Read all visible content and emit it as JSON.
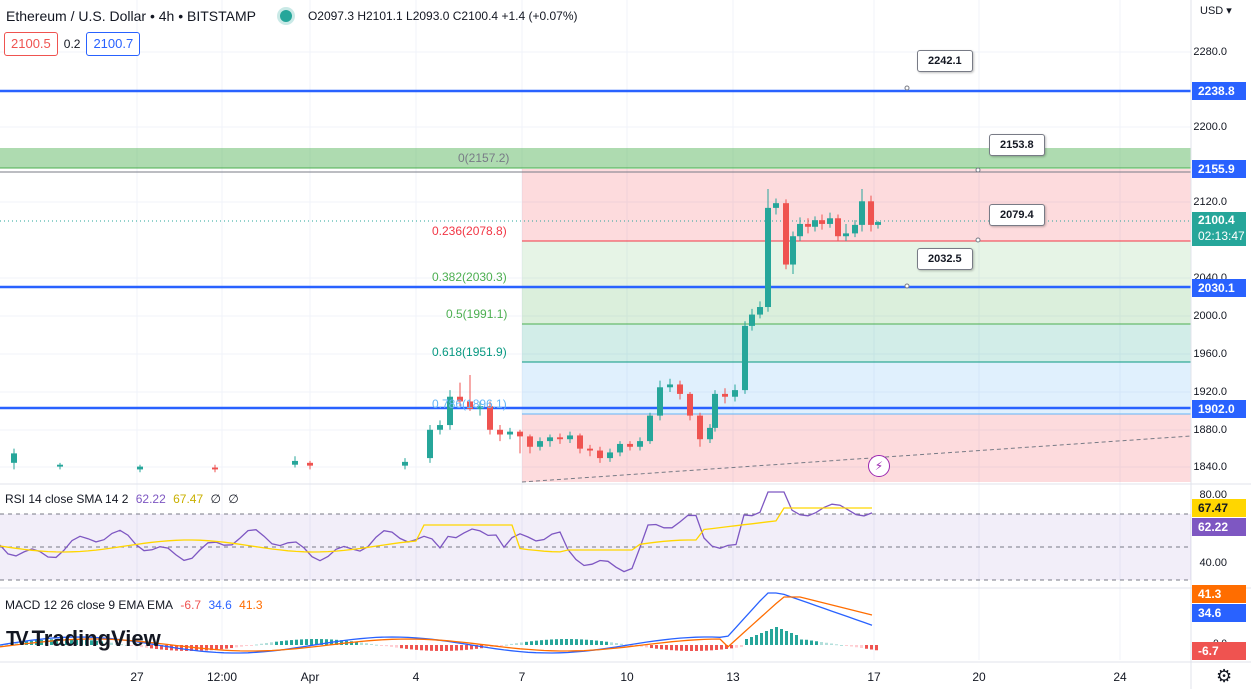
{
  "header": {
    "title": "Ethereum / U.S. Dollar • 4h • BITSTAMP",
    "ohlc": "O2097.3 H2101.1 L2093.0 C2100.4 +1.4 (+0.07%)",
    "sell_price": "2100.5",
    "spread": "0.2",
    "buy_price": "2100.7",
    "currency_button": "USD",
    "currency_caret": "▾"
  },
  "price_axis": {
    "labels": [
      "2280.0",
      "2200.0",
      "2120.0",
      "2040.0",
      "2000.0",
      "1960.0",
      "1920.0",
      "1880.0",
      "1840.0"
    ]
  },
  "price_tags": {
    "line_2238": "2238.8",
    "line_2155": "2155.9",
    "current": "2100.4",
    "countdown": "02:13:47",
    "line_2030": "2030.1",
    "line_1902": "1902.0"
  },
  "callouts": {
    "c1": "2242.1",
    "c2": "2153.8",
    "c3": "2079.4",
    "c4": "2032.5"
  },
  "fib_levels": [
    {
      "label": "0(2157.2)",
      "color": "#787b86"
    },
    {
      "label": "0.236(2078.8)",
      "color": "#f23645"
    },
    {
      "label": "0.382(2030.3)",
      "color": "#81c784"
    },
    {
      "label": "0.5(1991.1)",
      "color": "#4caf50"
    },
    {
      "label": "0.618(1951.9)",
      "color": "#089981"
    },
    {
      "label": "0.786(1896.1)",
      "color": "#64b5f6"
    }
  ],
  "rsi": {
    "name": "RSI 14 close SMA 14 2",
    "rsi_value": "62.22",
    "sma_value": "67.47",
    "extra1": "∅",
    "extra2": "∅",
    "axis_labels": [
      "80.00",
      "40.00"
    ],
    "tag_sma": "67.47",
    "tag_rsi": "62.22"
  },
  "macd": {
    "name": "MACD 12 26 close 9 EMA EMA",
    "hist": "-6.7",
    "macd": "34.6",
    "signal": "41.3",
    "tag_signal": "41.3",
    "tag_macd": "34.6",
    "tag_hist": "-6.7",
    "zero_label": "0.0"
  },
  "time_axis": [
    "27",
    "12:00",
    "Apr",
    "4",
    "7",
    "10",
    "13",
    "17",
    "20",
    "24"
  ],
  "branding": {
    "logo_mark": "TV",
    "logo_text": "TradingView"
  },
  "colors": {
    "up": "#26a69a",
    "down": "#ef5350",
    "hline": "#2962ff",
    "rsi": "#7e57c2",
    "rsi_sma": "#ffd600",
    "macd": "#2962ff",
    "signal": "#ff6d00"
  },
  "icons": {
    "settings": "gear-icon",
    "lightning": "lightning-icon"
  }
}
